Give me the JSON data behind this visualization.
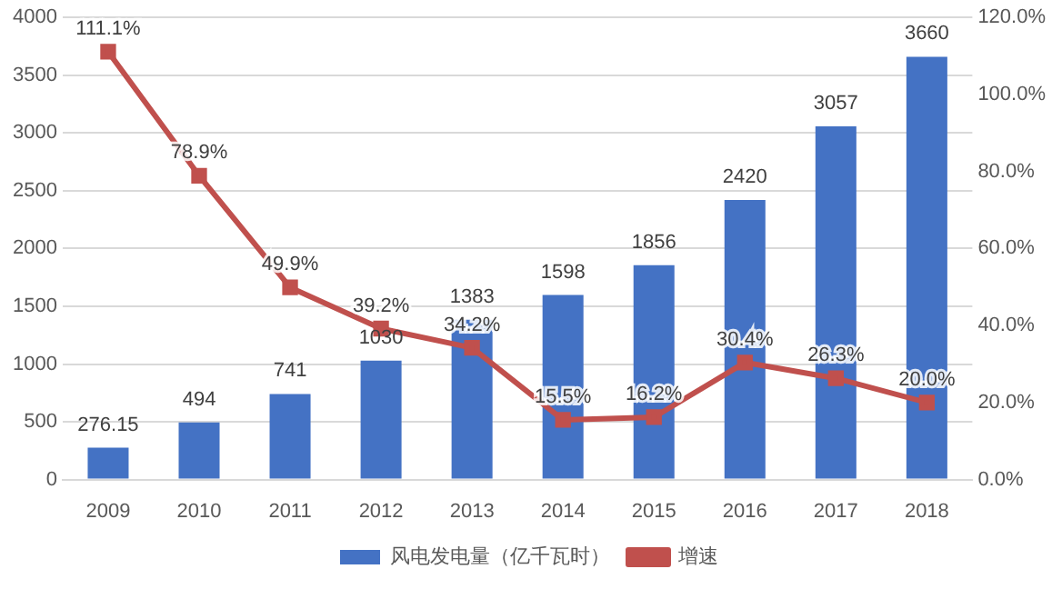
{
  "chart_data": {
    "type": "bar",
    "categories": [
      "2009",
      "2010",
      "2011",
      "2012",
      "2013",
      "2014",
      "2015",
      "2016",
      "2017",
      "2018"
    ],
    "series": [
      {
        "name": "风电发电量（亿千瓦时）",
        "color": "#4472c4",
        "values": [
          276.15,
          494,
          741,
          1030,
          1383,
          1598,
          1856,
          2420,
          3057,
          3660
        ],
        "value_labels": [
          "276.15",
          "494",
          "741",
          "1030",
          "1383",
          "1598",
          "1856",
          "2420",
          "3057",
          "3660"
        ]
      },
      {
        "name": "增速",
        "type": "line",
        "axis": "y2",
        "color": "#c0504d",
        "values": [
          111.1,
          78.9,
          49.9,
          39.2,
          34.2,
          15.5,
          16.2,
          30.4,
          26.3,
          20.0
        ],
        "value_labels": [
          "111.1%",
          "78.9%",
          "49.9%",
          "39.2%",
          "34.2%",
          "15.5%",
          "16.2%",
          "30.4%",
          "26.3%",
          "20.0%"
        ]
      }
    ],
    "ylim": [
      0,
      4000
    ],
    "yticks": [
      0,
      500,
      1000,
      1500,
      2000,
      2500,
      3000,
      3500,
      4000
    ],
    "y2lim": [
      0,
      120
    ],
    "y2ticks": [
      {
        "value": 0,
        "label": "0.0%"
      },
      {
        "value": 20,
        "label": "20.0%"
      },
      {
        "value": 40,
        "label": "40.0%"
      },
      {
        "value": 60,
        "label": "60.0%"
      },
      {
        "value": 80,
        "label": "80.0%"
      },
      {
        "value": 100,
        "label": "100.0%"
      },
      {
        "value": 120,
        "label": "120.0%"
      }
    ],
    "grid": "y",
    "legend": "bottom",
    "marker": "square",
    "line_style": "solid"
  }
}
